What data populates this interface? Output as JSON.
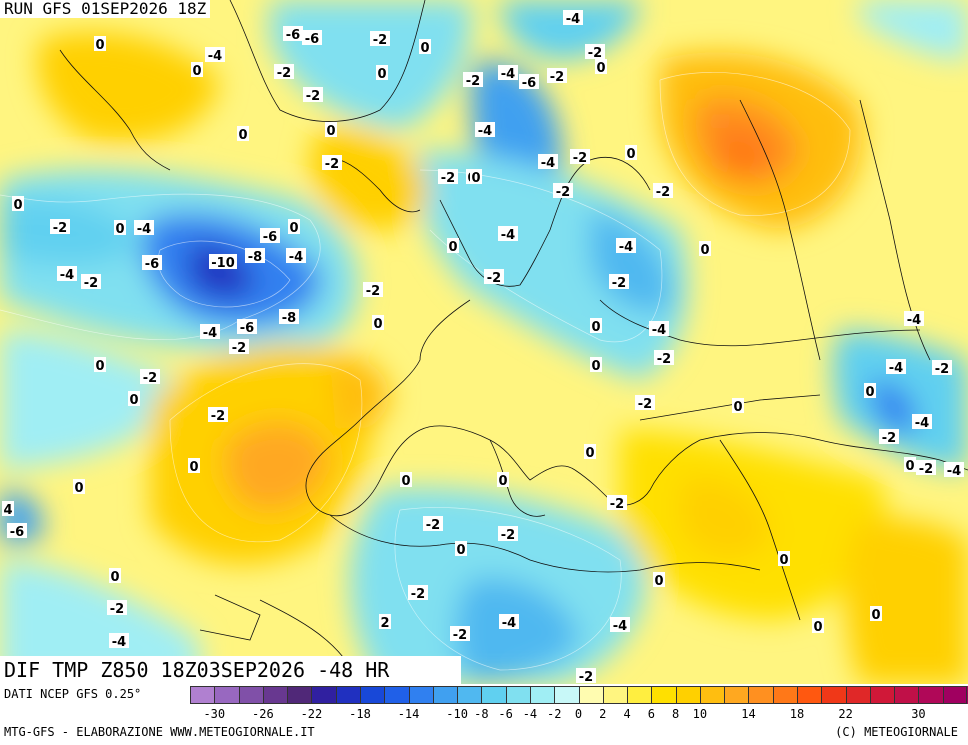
{
  "header": {
    "run": "RUN GFS 01SEP2026 18Z",
    "valid": "DIF TMP Z850 18Z03SEP2026 -48 HR"
  },
  "footer": {
    "dati": "DATI NCEP GFS 0.25°",
    "credit_left": "MTG-GFS - ELABORAZIONE WWW.METEOGIORNALE.IT",
    "credit_right": "(C) METEOGIORNALE"
  },
  "legend": {
    "colors": [
      "#b080d0",
      "#9868c0",
      "#8050a8",
      "#683890",
      "#502878",
      "#3020a0",
      "#2030c0",
      "#1848d8",
      "#2060e8",
      "#3080f0",
      "#40a0f0",
      "#50b8f0",
      "#60d0f0",
      "#80e0f0",
      "#a0eef4",
      "#c8f8f8",
      "#fffcb0",
      "#fff580",
      "#ffee40",
      "#ffe000",
      "#ffd000",
      "#ffbe10",
      "#ffa820",
      "#ff9020",
      "#ff7818",
      "#ff5810",
      "#f03818",
      "#e02828",
      "#d01838",
      "#c01048",
      "#b00858",
      "#a00060"
    ],
    "ticks": [
      "-30",
      "-26",
      "-22",
      "-18",
      "-14",
      "-10",
      "-8",
      "-6",
      "-4",
      "-2",
      "0",
      "2",
      "4",
      "6",
      "8",
      "10",
      "14",
      "18",
      "22",
      "30"
    ]
  },
  "map_labels": [
    "0",
    "-6",
    "-4",
    "-2",
    "-4",
    "0",
    "-2",
    "-6",
    "0",
    "-2",
    "-4",
    "-2",
    "0",
    "-2",
    "-6",
    "0",
    "-2",
    "0",
    "0",
    "-4",
    "-2",
    "0",
    "-2",
    "-2",
    "0",
    "0",
    "-4",
    "-2",
    "0",
    "-2",
    "0",
    "-4",
    "-2",
    "0",
    "-4",
    "-6",
    "0",
    "-4",
    "-6",
    "-10",
    "-8",
    "-4",
    "-4",
    "-2",
    "0",
    "-2",
    "-2",
    "-8",
    "-6",
    "-4",
    "-2",
    "0",
    "-4",
    "-2",
    "0",
    "0",
    "-2",
    "-2",
    "-4",
    "0",
    "0",
    "-2",
    "0",
    "-2",
    "-4",
    "0",
    "-2",
    "0",
    "-2",
    "-4",
    "-2",
    "0",
    "0",
    "0",
    "-4",
    "0",
    "-2",
    "4",
    "-6",
    "0",
    "-2",
    "-2",
    "-2",
    "0",
    "0",
    "0",
    "-2",
    "0",
    "-4",
    "2",
    "-4",
    "-2",
    "-4",
    "-2",
    "0",
    "0"
  ]
}
